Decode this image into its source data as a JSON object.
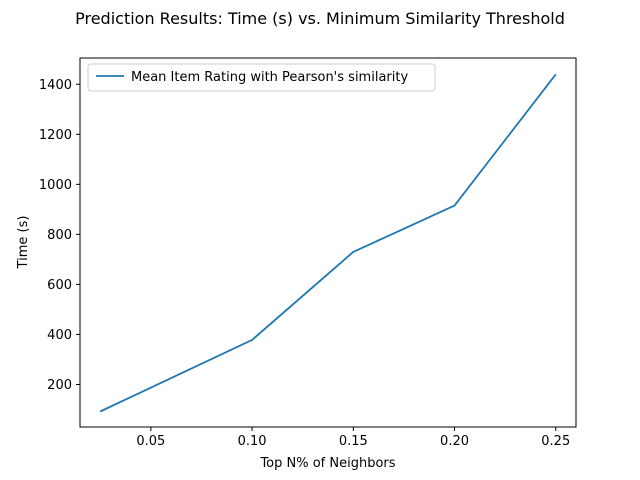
{
  "chart_data": {
    "type": "line",
    "title": "Prediction Results: Time (s) vs. Minimum Similarity Threshold",
    "xlabel": "Top N% of Neighbors",
    "ylabel": "Time (s)",
    "xlim": [
      0.015,
      0.26
    ],
    "ylim": [
      30,
      1505
    ],
    "xticks": [
      0.05,
      0.1,
      0.15,
      0.2,
      0.25
    ],
    "xtick_labels": [
      "0.05",
      "0.10",
      "0.15",
      "0.20",
      "0.25"
    ],
    "yticks": [
      200,
      400,
      600,
      800,
      1000,
      1200,
      1400
    ],
    "ytick_labels": [
      "200",
      "400",
      "600",
      "800",
      "1000",
      "1200",
      "1400"
    ],
    "grid": false,
    "legend_position": "upper left",
    "series": [
      {
        "name": "Mean Item Rating with Pearson's similarity",
        "color": "#1f77b4",
        "x": [
          0.025,
          0.1,
          0.15,
          0.2,
          0.25
        ],
        "y": [
          92,
          378,
          730,
          915,
          1440
        ]
      }
    ]
  }
}
